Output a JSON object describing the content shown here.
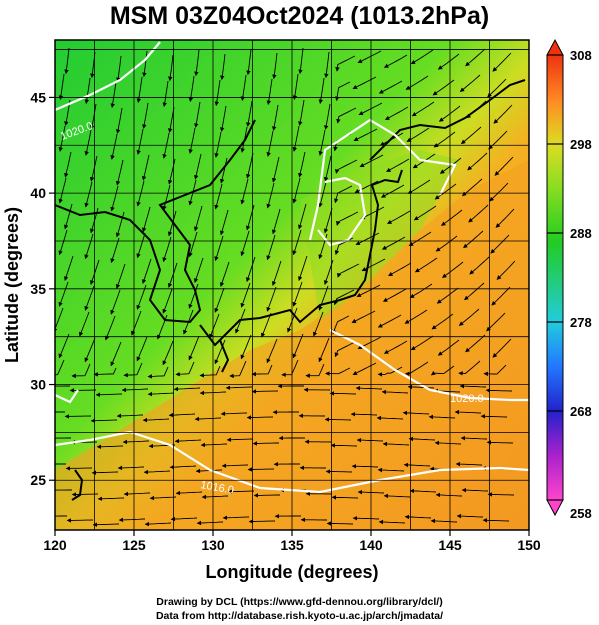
{
  "title": "MSM 03Z04Oct2024 (1013.2hPa)",
  "map": {
    "lon_range": [
      120,
      150
    ],
    "lat_range": [
      22.4,
      48
    ],
    "xlabel": "Longitude (degrees)",
    "ylabel": "Latitude  (degrees)",
    "x_ticks": [
      "120",
      "125",
      "130",
      "135",
      "140",
      "145",
      "150"
    ],
    "y_ticks": [
      "25",
      "30",
      "35",
      "40",
      "45"
    ],
    "contour_labels": [
      "1020.0",
      "1016.0",
      "1020.0"
    ]
  },
  "colorbar": {
    "ticks": [
      "308",
      "298",
      "288",
      "278",
      "268",
      "258"
    ],
    "min": 258,
    "max": 308,
    "colors": [
      "#ff44cc",
      "#aa22cc",
      "#2222cc",
      "#2277ff",
      "#22ccdd",
      "#22cc88",
      "#22cc22",
      "#88dd22",
      "#dddd22",
      "#ffbb22",
      "#ff8822",
      "#ee3311"
    ]
  },
  "credits": {
    "line1": "Drawing by DCL (https://www.gfd-dennou.org/library/dcl/)",
    "line2": "Data from http://database.rish.kyoto-u.ac.jp/arch/jmadata/"
  }
}
